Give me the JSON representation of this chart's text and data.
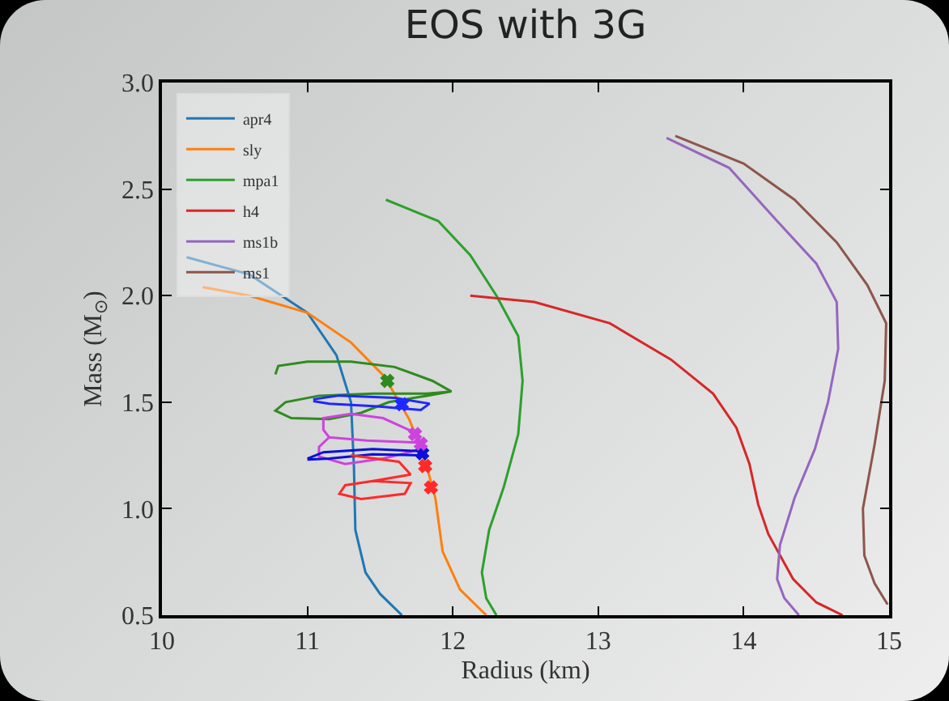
{
  "chart_data": {
    "type": "line",
    "title": "EOS with 3G",
    "xlabel": "Radius (km)",
    "ylabel": "Mass (M$_{⊙}$)",
    "xlim": [
      10,
      15
    ],
    "xticks": [
      10,
      11,
      12,
      13,
      14,
      15
    ],
    "ylim": [
      0.5,
      3.0
    ],
    "yticks": [
      0.5,
      {
        "value": 1,
        "label": "1.0"
      },
      1.5,
      {
        "value": 2,
        "label": "2.0"
      },
      2.5,
      {
        "value": 3,
        "label": "3.0"
      }
    ],
    "grid": false,
    "legend": "top left",
    "marker": "none",
    "line_style": "solid",
    "series": [
      {
        "name": "apr4",
        "color": "#1f77b4",
        "x": [
          10.17,
          10.6,
          11.0,
          11.2,
          11.3,
          11.32,
          11.33,
          11.4,
          11.5,
          11.65
        ],
        "values": [
          2.18,
          2.1,
          1.92,
          1.72,
          1.5,
          1.2,
          0.9,
          0.7,
          0.6,
          0.5
        ]
      },
      {
        "name": "sly",
        "color": "#ff7f0e",
        "x": [
          10.28,
          10.6,
          11.0,
          11.3,
          11.53,
          11.7,
          11.8,
          11.88,
          11.93,
          12.05,
          12.23
        ],
        "values": [
          2.04,
          2.0,
          1.92,
          1.78,
          1.62,
          1.42,
          1.25,
          1.05,
          0.8,
          0.62,
          0.5
        ]
      },
      {
        "name": "mpa1",
        "color": "#2ca02c",
        "x": [
          11.54,
          11.9,
          12.12,
          12.3,
          12.45,
          12.48,
          12.45,
          12.35,
          12.25,
          12.2,
          12.23,
          12.3
        ],
        "values": [
          2.45,
          2.35,
          2.19,
          2.0,
          1.81,
          1.6,
          1.35,
          1.1,
          0.9,
          0.7,
          0.58,
          0.5
        ]
      },
      {
        "name": "h4",
        "color": "#d62728",
        "x": [
          12.12,
          12.56,
          13.08,
          13.5,
          13.79,
          13.95,
          14.04,
          14.1,
          14.17,
          14.34,
          14.5,
          14.68
        ],
        "values": [
          2.0,
          1.97,
          1.87,
          1.7,
          1.54,
          1.38,
          1.21,
          1.02,
          0.88,
          0.67,
          0.56,
          0.5
        ]
      },
      {
        "name": "ms1b",
        "color": "#9467bd",
        "x": [
          13.47,
          13.9,
          14.23,
          14.5,
          14.64,
          14.65,
          14.58,
          14.49,
          14.35,
          14.25,
          14.23,
          14.28,
          14.38
        ],
        "values": [
          2.74,
          2.6,
          2.35,
          2.15,
          1.97,
          1.75,
          1.5,
          1.28,
          1.05,
          0.83,
          0.67,
          0.58,
          0.5
        ]
      },
      {
        "name": "ms1",
        "color": "#8c564b",
        "x": [
          13.53,
          14.0,
          14.35,
          14.64,
          14.85,
          14.98,
          14.97,
          14.9,
          14.82,
          14.83,
          14.9,
          14.99
        ],
        "values": [
          2.75,
          2.62,
          2.45,
          2.25,
          2.05,
          1.87,
          1.6,
          1.3,
          1.0,
          0.78,
          0.65,
          0.55
        ]
      },
      {
        "color": "#2e8b1e",
        "x": [
          10.78,
          10.8,
          11.0,
          11.3,
          11.6,
          11.86,
          11.99,
          11.82,
          11.56,
          11.37,
          11.15,
          10.89,
          10.78,
          10.85,
          11.08,
          11.45,
          11.82,
          11.99
        ],
        "values": [
          1.63,
          1.67,
          1.69,
          1.69,
          1.665,
          1.6,
          1.55,
          1.53,
          1.5,
          1.45,
          1.42,
          1.425,
          1.46,
          1.5,
          1.53,
          1.54,
          1.54,
          1.55
        ]
      },
      {
        "color": "#1e28ff",
        "x": [
          11.04,
          11.22,
          11.6,
          11.84,
          11.78,
          11.48,
          11.15,
          11.04
        ],
        "values": [
          1.513,
          1.531,
          1.52,
          1.493,
          1.463,
          1.48,
          1.493,
          1.505
        ]
      },
      {
        "color": "#cc44dd",
        "x": [
          11.76,
          11.41,
          11.15,
          11.08,
          11.08,
          11.26,
          11.52,
          11.75,
          11.76,
          11.73,
          11.52,
          11.3,
          11.11,
          11.11,
          11.15
        ],
        "values": [
          1.31,
          1.32,
          1.335,
          1.29,
          1.245,
          1.21,
          1.235,
          1.273,
          1.31,
          1.36,
          1.425,
          1.445,
          1.425,
          1.37,
          1.335
        ]
      },
      {
        "color": "#0a10d8",
        "x": [
          11.0,
          11.11,
          11.45,
          11.78,
          11.8,
          11.45,
          11.15,
          11.0
        ],
        "values": [
          1.235,
          1.265,
          1.28,
          1.27,
          1.25,
          1.255,
          1.235,
          1.23
        ]
      },
      {
        "color": "#ff2a2a",
        "x": [
          11.3,
          11.63,
          11.71,
          11.45,
          11.26,
          11.22,
          11.37,
          11.67,
          11.71,
          11.45
        ],
        "values": [
          1.25,
          1.22,
          1.16,
          1.13,
          1.11,
          1.07,
          1.045,
          1.07,
          1.12,
          1.13
        ]
      },
      {
        "type": "scatter",
        "marker": "cross",
        "color": "#2e8b1e",
        "x": [
          11.55
        ],
        "values": [
          1.6
        ]
      },
      {
        "type": "scatter",
        "marker": "cross",
        "color": "#1e28ff",
        "x": [
          11.65
        ],
        "values": [
          1.49
        ]
      },
      {
        "type": "scatter",
        "marker": "cross",
        "color": "#0a10d8",
        "x": [
          11.79
        ],
        "values": [
          1.26
        ]
      },
      {
        "type": "scatter",
        "marker": "cross",
        "color": "#cc44dd",
        "x": [
          11.74,
          11.78
        ],
        "values": [
          1.35,
          1.305
        ]
      },
      {
        "type": "scatter",
        "marker": "cross",
        "color": "#ff2a2a",
        "x": [
          11.81,
          11.85
        ],
        "values": [
          1.2,
          1.1
        ]
      }
    ]
  }
}
